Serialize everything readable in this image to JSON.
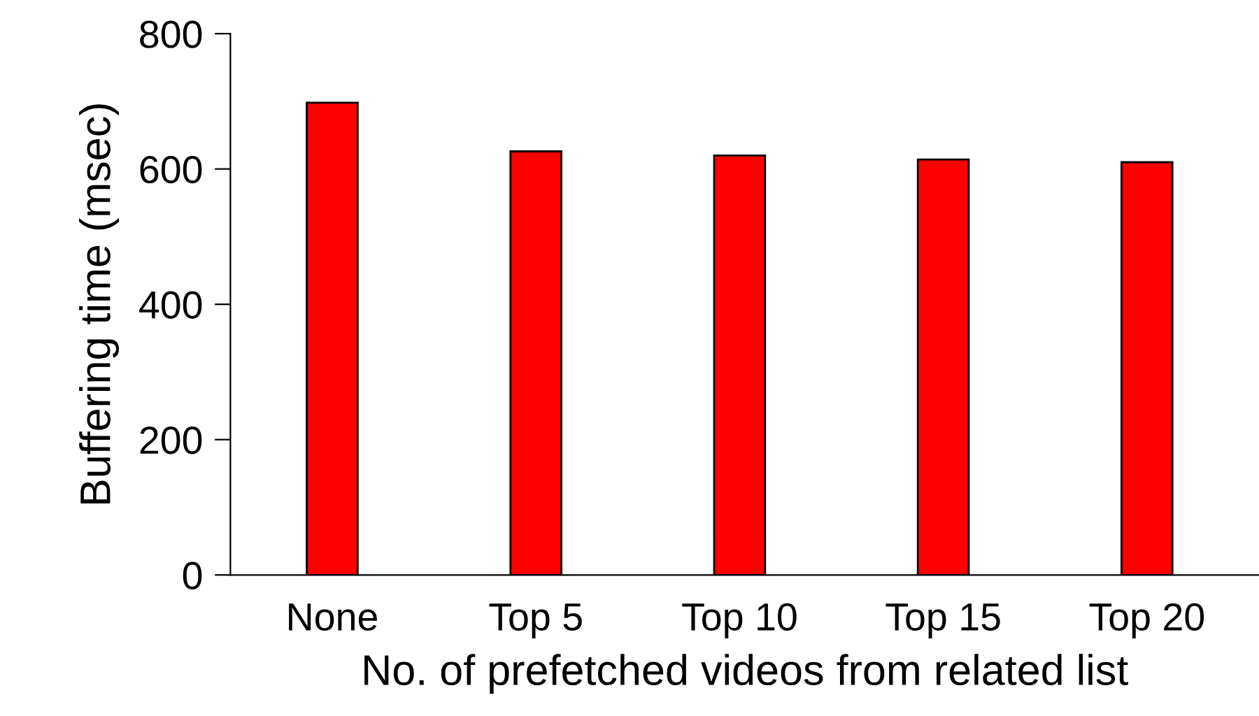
{
  "chart_data": {
    "type": "bar",
    "xlabel": "No. of prefetched videos from related list",
    "ylabel": "Buffering time (msec)",
    "categories": [
      "None",
      "Top 5",
      "Top 10",
      "Top 15",
      "Top 20"
    ],
    "values": [
      698,
      626,
      620,
      614,
      610
    ],
    "color": "#ff0000",
    "ylim": [
      0,
      800
    ],
    "yticks": [
      0,
      200,
      400,
      600,
      800
    ],
    "grid": false
  }
}
